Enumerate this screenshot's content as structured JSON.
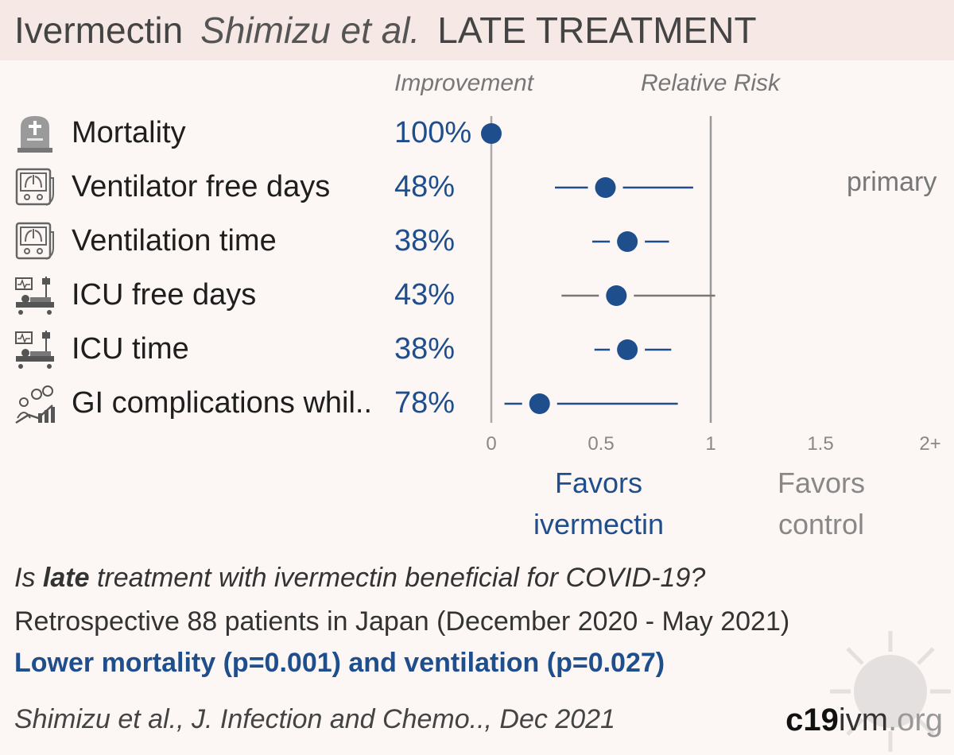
{
  "header": {
    "drug": "Ivermectin",
    "authors": "Shimizu et al.",
    "treatment_stage": "LATE TREATMENT"
  },
  "columns": {
    "improvement": "Improvement",
    "relative_risk": "Relative Risk"
  },
  "outcomes": [
    {
      "label": "Mortality",
      "improvement": "100%",
      "icon": "tombstone-icon",
      "note": ""
    },
    {
      "label": "Ventilator free days",
      "improvement": "48%",
      "icon": "ventilator-icon",
      "note": "primary"
    },
    {
      "label": "Ventilation time",
      "improvement": "38%",
      "icon": "ventilator-icon",
      "note": ""
    },
    {
      "label": "ICU free days",
      "improvement": "43%",
      "icon": "icu-bed-icon",
      "note": ""
    },
    {
      "label": "ICU time",
      "improvement": "38%",
      "icon": "icu-bed-icon",
      "note": ""
    },
    {
      "label": "GI complications whil..",
      "improvement": "78%",
      "icon": "progression-icon",
      "note": ""
    }
  ],
  "chart_data": {
    "type": "scatter",
    "subtype": "forest-plot",
    "x_scale": "relative risk",
    "xlim": [
      0,
      2
    ],
    "x_ticks": [
      "0",
      "0.5",
      "1",
      "1.5",
      "2+"
    ],
    "reference_line": 1,
    "categories": [
      "Mortality",
      "Ventilator free days",
      "Ventilation time",
      "ICU free days",
      "ICU time",
      "GI complications whil.."
    ],
    "estimates": [
      0.0,
      0.52,
      0.62,
      0.57,
      0.62,
      0.22
    ],
    "ci_low": [
      null,
      0.29,
      0.46,
      0.32,
      0.47,
      0.06
    ],
    "ci_high": [
      null,
      0.92,
      0.81,
      1.02,
      0.82,
      0.85
    ],
    "ci_significant": [
      true,
      true,
      true,
      false,
      true,
      true
    ],
    "colors": {
      "point": "#1f4e8c",
      "significant_ci": "#1f4e8c",
      "nonsignificant_ci": "#777777",
      "axis": "#aaaaaa"
    },
    "favors_treatment": "Favors ivermectin",
    "favors_control": "Favors control"
  },
  "favors": {
    "treatment_line1": "Favors",
    "treatment_line2": "ivermectin",
    "control_line1": "Favors",
    "control_line2": "control"
  },
  "summary": {
    "question_prefix": "Is ",
    "question_bold": "late",
    "question_suffix": " treatment with ivermectin beneficial for COVID-19?",
    "design": "Retrospective 88 patients in Japan (December 2020 - May 2021)",
    "conclusion": "Lower mortality (p=0.001) and ventilation (p=0.027)",
    "citation": "Shimizu et al., J. Infection and Chemo.., Dec 2021"
  },
  "brand": {
    "part1": "c19",
    "part2": "ivm",
    "part3": ".org"
  },
  "colors": {
    "accent": "#1f4e8c",
    "background": "#fcf6f5",
    "title_band": "#f6e9e5"
  }
}
